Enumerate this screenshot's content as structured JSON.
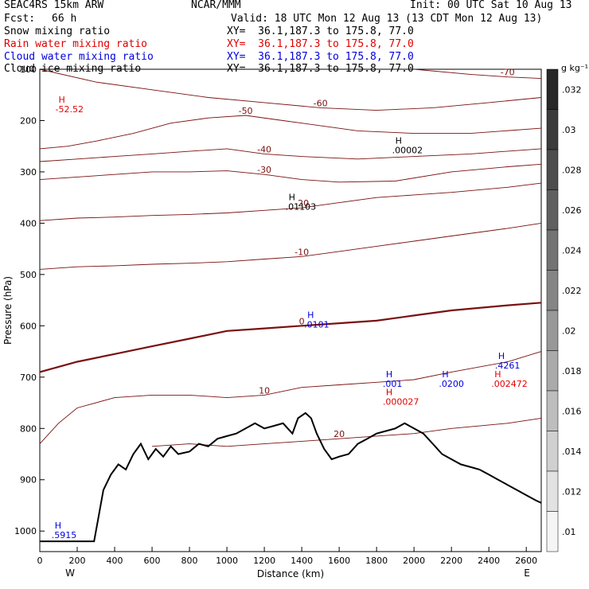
{
  "header": {
    "model": "SEAC4RS 15km ARW",
    "center": "NCAR/MMM",
    "init": "Init: 00 UTC Sat 10 Aug 13",
    "fcst_label": "Fcst:",
    "fcst_value": "66 h",
    "valid": "Valid: 18 UTC Mon 12 Aug 13 (13 CDT Mon 12 Aug 13)",
    "fields": [
      {
        "name": "Snow mixing ratio",
        "xy": "XY=  36.1,187.3 to 175.8, 77.0",
        "color": "#000000"
      },
      {
        "name": "Rain water mixing ratio",
        "xy": "XY=  36.1,187.3 to 175.8, 77.0",
        "color": "#e00000"
      },
      {
        "name": "Cloud water mixing ratio",
        "xy": "XY=  36.1,187.3 to 175.8, 77.0",
        "color": "#0000e0"
      },
      {
        "name": "Cloud ice mixing ratio",
        "xy": "XY=  36.1,187.3 to 175.8, 77.0",
        "color": "#000000"
      }
    ]
  },
  "chart_data": {
    "type": "contour-cross-section",
    "xlabel": "Distance (km)",
    "ylabel": "Pressure (hPa)",
    "xlim": [
      0,
      2680
    ],
    "ylim": [
      1040,
      100
    ],
    "x_ticks": [
      0,
      200,
      400,
      600,
      800,
      1000,
      1200,
      1400,
      1600,
      1800,
      2000,
      2200,
      2400,
      2600
    ],
    "y_ticks": [
      100,
      200,
      300,
      400,
      500,
      600,
      700,
      800,
      900,
      1000
    ],
    "left_end_label": "W",
    "right_end_label": "E",
    "colorbar": {
      "units": "g kg⁻¹",
      "ticks": [
        ".032",
        ".03",
        ".028",
        ".026",
        ".024",
        ".022",
        ".02",
        ".018",
        ".016",
        ".014",
        ".012",
        ".01"
      ]
    },
    "temperature_contours": [
      {
        "label": "-60",
        "points": [
          [
            0,
            100
          ],
          [
            300,
            125
          ],
          [
            600,
            140
          ],
          [
            900,
            155
          ],
          [
            1200,
            165
          ],
          [
            1500,
            175
          ],
          [
            1800,
            180
          ],
          [
            2100,
            175
          ],
          [
            2400,
            165
          ],
          [
            2680,
            155
          ]
        ]
      },
      {
        "label": "-70",
        "points": [
          [
            2000,
            100
          ],
          [
            2300,
            110
          ],
          [
            2500,
            115
          ],
          [
            2680,
            118
          ]
        ]
      },
      {
        "label": "-50",
        "points": [
          [
            0,
            255
          ],
          [
            150,
            250
          ],
          [
            300,
            240
          ],
          [
            500,
            225
          ],
          [
            700,
            205
          ],
          [
            900,
            195
          ],
          [
            1100,
            190
          ],
          [
            1300,
            200
          ],
          [
            1500,
            210
          ],
          [
            1700,
            220
          ],
          [
            2000,
            225
          ],
          [
            2300,
            225
          ],
          [
            2680,
            215
          ]
        ]
      },
      {
        "label": "-40",
        "points": [
          [
            0,
            280
          ],
          [
            200,
            275
          ],
          [
            400,
            270
          ],
          [
            600,
            265
          ],
          [
            800,
            260
          ],
          [
            1000,
            255
          ],
          [
            1200,
            265
          ],
          [
            1400,
            270
          ],
          [
            1700,
            275
          ],
          [
            2000,
            270
          ],
          [
            2300,
            265
          ],
          [
            2680,
            255
          ]
        ]
      },
      {
        "label": "-30",
        "points": [
          [
            0,
            315
          ],
          [
            200,
            310
          ],
          [
            400,
            305
          ],
          [
            600,
            300
          ],
          [
            800,
            300
          ],
          [
            1000,
            298
          ],
          [
            1200,
            305
          ],
          [
            1400,
            315
          ],
          [
            1600,
            320
          ],
          [
            1900,
            318
          ],
          [
            2200,
            300
          ],
          [
            2500,
            290
          ],
          [
            2680,
            285
          ]
        ]
      },
      {
        "label": "-20",
        "points": [
          [
            0,
            395
          ],
          [
            200,
            390
          ],
          [
            400,
            388
          ],
          [
            600,
            385
          ],
          [
            800,
            383
          ],
          [
            1000,
            380
          ],
          [
            1200,
            375
          ],
          [
            1400,
            370
          ],
          [
            1600,
            360
          ],
          [
            1800,
            350
          ],
          [
            2000,
            345
          ],
          [
            2200,
            340
          ],
          [
            2500,
            330
          ],
          [
            2680,
            322
          ]
        ]
      },
      {
        "label": "-10",
        "points": [
          [
            0,
            490
          ],
          [
            200,
            485
          ],
          [
            400,
            483
          ],
          [
            600,
            480
          ],
          [
            800,
            478
          ],
          [
            1000,
            475
          ],
          [
            1200,
            470
          ],
          [
            1400,
            465
          ],
          [
            1600,
            455
          ],
          [
            1800,
            445
          ],
          [
            2000,
            435
          ],
          [
            2200,
            425
          ],
          [
            2500,
            410
          ],
          [
            2680,
            400
          ]
        ]
      },
      {
        "label": "0",
        "bold": true,
        "points": [
          [
            0,
            690
          ],
          [
            200,
            670
          ],
          [
            400,
            655
          ],
          [
            600,
            640
          ],
          [
            800,
            625
          ],
          [
            1000,
            610
          ],
          [
            1200,
            605
          ],
          [
            1400,
            600
          ],
          [
            1600,
            595
          ],
          [
            1800,
            590
          ],
          [
            2000,
            580
          ],
          [
            2200,
            570
          ],
          [
            2500,
            560
          ],
          [
            2680,
            555
          ]
        ]
      },
      {
        "label": "10",
        "points": [
          [
            0,
            830
          ],
          [
            100,
            790
          ],
          [
            200,
            760
          ],
          [
            400,
            740
          ],
          [
            600,
            735
          ],
          [
            800,
            735
          ],
          [
            1000,
            740
          ],
          [
            1200,
            735
          ],
          [
            1400,
            720
          ],
          [
            1600,
            715
          ],
          [
            1800,
            710
          ],
          [
            2000,
            705
          ],
          [
            2200,
            690
          ],
          [
            2500,
            670
          ],
          [
            2680,
            650
          ]
        ]
      },
      {
        "label": "20",
        "points": [
          [
            600,
            835
          ],
          [
            800,
            830
          ],
          [
            1000,
            835
          ],
          [
            1200,
            830
          ],
          [
            1400,
            825
          ],
          [
            1600,
            820
          ],
          [
            1800,
            815
          ],
          [
            2000,
            810
          ],
          [
            2200,
            800
          ],
          [
            2500,
            790
          ],
          [
            2680,
            780
          ]
        ]
      }
    ],
    "terrain": [
      [
        0,
        1020
      ],
      [
        290,
        1020
      ],
      [
        310,
        980
      ],
      [
        340,
        920
      ],
      [
        380,
        890
      ],
      [
        420,
        870
      ],
      [
        460,
        880
      ],
      [
        500,
        850
      ],
      [
        540,
        830
      ],
      [
        580,
        860
      ],
      [
        620,
        840
      ],
      [
        660,
        855
      ],
      [
        700,
        835
      ],
      [
        740,
        850
      ],
      [
        800,
        845
      ],
      [
        850,
        830
      ],
      [
        900,
        835
      ],
      [
        950,
        820
      ],
      [
        1000,
        815
      ],
      [
        1050,
        810
      ],
      [
        1100,
        800
      ],
      [
        1150,
        790
      ],
      [
        1200,
        800
      ],
      [
        1250,
        795
      ],
      [
        1300,
        790
      ],
      [
        1350,
        810
      ],
      [
        1380,
        780
      ],
      [
        1420,
        770
      ],
      [
        1450,
        780
      ],
      [
        1480,
        810
      ],
      [
        1520,
        840
      ],
      [
        1560,
        860
      ],
      [
        1600,
        855
      ],
      [
        1650,
        850
      ],
      [
        1700,
        830
      ],
      [
        1750,
        820
      ],
      [
        1800,
        810
      ],
      [
        1850,
        805
      ],
      [
        1900,
        800
      ],
      [
        1950,
        790
      ],
      [
        2000,
        800
      ],
      [
        2050,
        810
      ],
      [
        2100,
        830
      ],
      [
        2150,
        850
      ],
      [
        2200,
        860
      ],
      [
        2250,
        870
      ],
      [
        2300,
        875
      ],
      [
        2350,
        880
      ],
      [
        2400,
        890
      ],
      [
        2450,
        900
      ],
      [
        2500,
        910
      ],
      [
        2550,
        920
      ],
      [
        2600,
        930
      ],
      [
        2650,
        940
      ],
      [
        2680,
        945
      ]
    ],
    "maxima_labels": [
      {
        "text": "H",
        "sub": "-52.52",
        "x": 100,
        "y": 165,
        "color": "#e00000"
      },
      {
        "text": "H",
        "sub": ".00002",
        "x": 1900,
        "y": 245,
        "color": "#000000"
      },
      {
        "text": "H",
        "sub": ".01103",
        "x": 1330,
        "y": 355,
        "color": "#000000"
      },
      {
        "text": "H",
        "sub": ".0101",
        "x": 1430,
        "y": 585,
        "color": "#0000e0"
      },
      {
        "text": "H",
        "sub": ".4261",
        "x": 2450,
        "y": 665,
        "color": "#0000e0"
      },
      {
        "text": "H",
        "sub": ".002472",
        "x": 2430,
        "y": 700,
        "color": "#e00000"
      },
      {
        "text": "H",
        "sub": ".0200",
        "x": 2150,
        "y": 700,
        "color": "#0000e0"
      },
      {
        "text": "H",
        "sub": ".001",
        "x": 1850,
        "y": 700,
        "color": "#0000e0"
      },
      {
        "text": "H",
        "sub": ".000027",
        "x": 1850,
        "y": 735,
        "color": "#e00000"
      },
      {
        "text": "H",
        "sub": ".5915",
        "x": 80,
        "y": 995,
        "color": "#0000e0"
      }
    ]
  }
}
